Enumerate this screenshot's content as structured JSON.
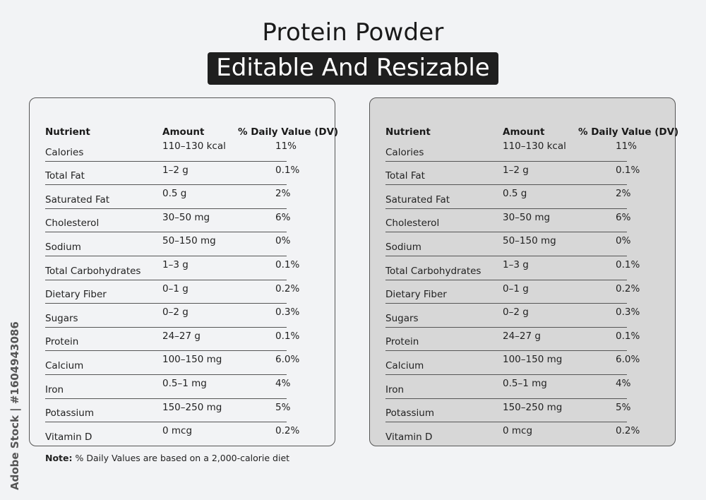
{
  "title": "Protein Powder",
  "subtitle": "Editable And Resizable",
  "headers": {
    "nutrient": "Nutrient",
    "amount": "Amount",
    "dv": "% Daily Value (DV)"
  },
  "rows": [
    {
      "nutrient": "Calories",
      "amount": "110–130 kcal",
      "dv": "11%"
    },
    {
      "nutrient": "Total Fat",
      "amount": "1–2 g",
      "dv": "0.1%"
    },
    {
      "nutrient": "Saturated Fat",
      "amount": "0.5 g",
      "dv": "2%"
    },
    {
      "nutrient": "Cholesterol",
      "amount": "30–50 mg",
      "dv": "6%"
    },
    {
      "nutrient": "Sodium",
      "amount": "50–150 mg",
      "dv": "0%"
    },
    {
      "nutrient": "Total Carbohydrates",
      "amount": "1–3 g",
      "dv": "0.1%"
    },
    {
      "nutrient": "Dietary Fiber",
      "amount": "0–1 g",
      "dv": "0.2%"
    },
    {
      "nutrient": "Sugars",
      "amount": "0–2 g",
      "dv": "0.3%"
    },
    {
      "nutrient": "Protein",
      "amount": "24–27 g",
      "dv": "0.1%"
    },
    {
      "nutrient": "Calcium",
      "amount": "100–150 mg",
      "dv": "6.0%"
    },
    {
      "nutrient": "Iron",
      "amount": "0.5–1 mg",
      "dv": "4%"
    },
    {
      "nutrient": "Potassium",
      "amount": "150–250 mg",
      "dv": "5%"
    },
    {
      "nutrient": "Vitamin D",
      "amount": "0 mcg",
      "dv": "0.2%"
    }
  ],
  "note": {
    "label": "Note:",
    "text": " % Daily Values are based on a 2,000-calorie diet"
  },
  "stock_id": "Adobe Stock | #1604943086",
  "colors": {
    "left_panel_bg": "#f2f3f5",
    "right_panel_bg": "#d7d7d7",
    "subtitle_bg": "#1f1f1f"
  }
}
